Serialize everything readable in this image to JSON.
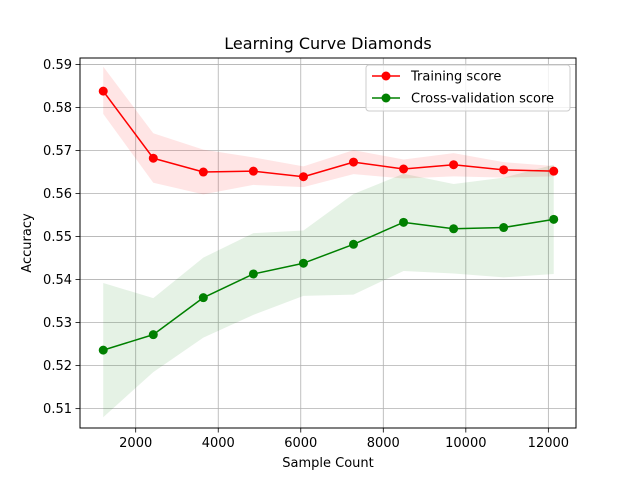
{
  "chart_data": {
    "type": "line",
    "title": "Learning Curve Diamonds",
    "xlabel": "Sample Count",
    "ylabel": "Accuracy",
    "xlim": [
      650,
      12670
    ],
    "ylim": [
      0.5055,
      0.5915
    ],
    "xticks": [
      2000,
      4000,
      6000,
      8000,
      10000,
      12000
    ],
    "xtick_labels": [
      "2000",
      "4000",
      "6000",
      "8000",
      "10000",
      "12000"
    ],
    "yticks": [
      0.51,
      0.52,
      0.53,
      0.54,
      0.55,
      0.56,
      0.57,
      0.58,
      0.59
    ],
    "ytick_labels": [
      "0.51",
      "0.52",
      "0.53",
      "0.54",
      "0.55",
      "0.56",
      "0.57",
      "0.58",
      "0.59"
    ],
    "grid": true,
    "legend_position": "top-right",
    "x": [
      1213,
      2426,
      3639,
      4852,
      6065,
      7278,
      8491,
      9704,
      10917,
      12130
    ],
    "series": [
      {
        "name": "Training score",
        "color": "#ff0000",
        "values": [
          0.5838,
          0.5682,
          0.565,
          0.5652,
          0.5639,
          0.5673,
          0.5657,
          0.5667,
          0.5655,
          0.5652
        ],
        "band_lower": [
          0.5785,
          0.5625,
          0.5598,
          0.562,
          0.5615,
          0.5645,
          0.5635,
          0.564,
          0.5637,
          0.564
        ],
        "band_upper": [
          0.5895,
          0.574,
          0.5702,
          0.5684,
          0.5663,
          0.5701,
          0.5679,
          0.5694,
          0.5673,
          0.5664
        ]
      },
      {
        "name": "Cross-validation score",
        "color": "#008000",
        "values": [
          0.5236,
          0.5272,
          0.5358,
          0.5413,
          0.5438,
          0.5482,
          0.5533,
          0.5518,
          0.5521,
          0.554
        ],
        "band_lower": [
          0.508,
          0.5185,
          0.5265,
          0.5318,
          0.5362,
          0.5365,
          0.542,
          0.5414,
          0.5405,
          0.5413
        ],
        "band_upper": [
          0.5392,
          0.5357,
          0.5451,
          0.5508,
          0.5514,
          0.5599,
          0.5646,
          0.5622,
          0.5637,
          0.5667
        ]
      }
    ]
  }
}
